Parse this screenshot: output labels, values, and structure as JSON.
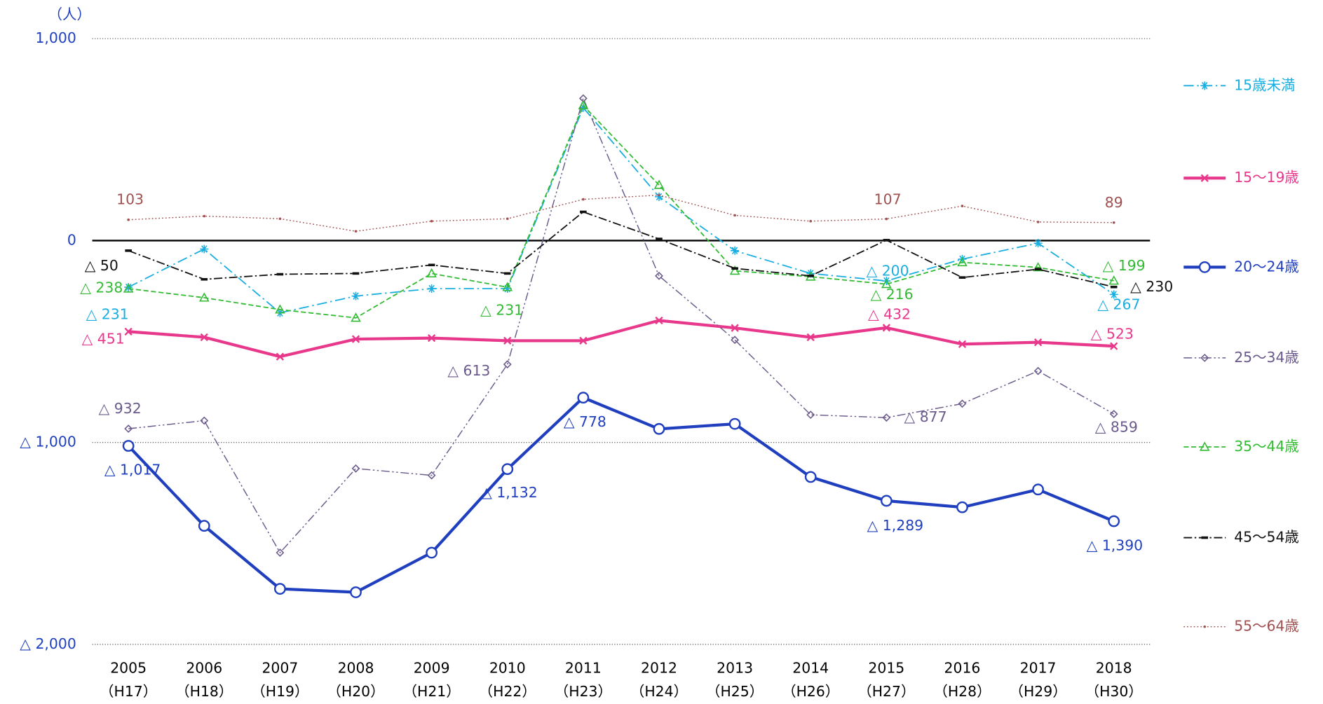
{
  "chart_data": {
    "type": "line",
    "y_unit": "（人）",
    "categories": [
      "2005",
      "2006",
      "2007",
      "2008",
      "2009",
      "2010",
      "2011",
      "2012",
      "2013",
      "2014",
      "2015",
      "2016",
      "2017",
      "2018"
    ],
    "category_eras": [
      "（H17）",
      "（H18）",
      "（H19）",
      "（H20）",
      "（H21）",
      "（H22）",
      "（H23）",
      "（H24）",
      "（H25）",
      "（H26）",
      "（H27）",
      "（H28）",
      "（H29）",
      "（H30）"
    ],
    "ylim": [
      -2000,
      1000
    ],
    "yticks": [
      {
        "value": 1000,
        "label": "1,000"
      },
      0,
      {
        "value": -1000,
        "label": "△ 1,000"
      },
      {
        "value": -2000,
        "label": "△ 2,000"
      }
    ],
    "grid": true,
    "legend": "right",
    "series": [
      {
        "name": "15歳未満",
        "color": "#1aaee0",
        "dash": "12 4 2 4",
        "width": 1.5,
        "marker": "asterisk",
        "values": [
          -231,
          -42,
          -358,
          -275,
          -238,
          -238,
          658,
          217,
          -50,
          -163,
          -200,
          -92,
          -13,
          -267
        ],
        "value_labels": [
          "△ 231",
          null,
          null,
          null,
          null,
          null,
          null,
          null,
          null,
          null,
          "△ 200",
          null,
          null,
          "△ 267"
        ]
      },
      {
        "name": "15～19歳",
        "color": "#e8388c",
        "dash": "",
        "width": 3.5,
        "marker": "x",
        "values": [
          -451,
          -479,
          -575,
          -488,
          -483,
          -496,
          -496,
          -396,
          -433,
          -479,
          -432,
          -513,
          -504,
          -523
        ],
        "value_labels": [
          "△ 451",
          null,
          null,
          null,
          null,
          null,
          null,
          null,
          null,
          null,
          "△ 432",
          null,
          null,
          "△ 523"
        ]
      },
      {
        "name": "20～24歳",
        "color": "#1f3fbf",
        "dash": "",
        "width": 3.5,
        "marker": "circle",
        "values": [
          -1017,
          -1413,
          -1725,
          -1742,
          -1546,
          -1132,
          -778,
          -933,
          -908,
          -1171,
          -1289,
          -1321,
          -1233,
          -1390
        ],
        "value_labels": [
          "△ 1,017",
          null,
          null,
          null,
          null,
          "△ 1,132",
          "△ 778",
          null,
          null,
          null,
          "△ 1,289",
          null,
          null,
          "△ 1,390"
        ]
      },
      {
        "name": "25～34歳",
        "color": "#6a5a8c",
        "dash": "10 3 2 3 2 3",
        "width": 1.2,
        "marker": "diamond",
        "values": [
          -932,
          -892,
          -1546,
          -1129,
          -1163,
          -613,
          704,
          -175,
          -492,
          -863,
          -877,
          -808,
          -646,
          -859
        ],
        "value_labels": [
          "△ 932",
          null,
          null,
          null,
          null,
          "△ 613",
          null,
          null,
          null,
          null,
          "△ 877",
          null,
          null,
          "△ 859"
        ]
      },
      {
        "name": "35～44歳",
        "color": "#33bb33",
        "dash": "6 3",
        "width": 1.5,
        "marker": "triangle",
        "values": [
          -238,
          -283,
          -342,
          -383,
          -163,
          -231,
          669,
          275,
          -150,
          -179,
          -216,
          -108,
          -133,
          -199
        ],
        "value_labels": [
          "△ 238",
          null,
          null,
          null,
          null,
          "△ 231",
          null,
          null,
          null,
          null,
          "△ 216",
          null,
          null,
          "△ 199"
        ]
      },
      {
        "name": "45～54歳",
        "color": "#111111",
        "dash": "10 3 2 3",
        "width": 1.5,
        "marker": "dash",
        "values": [
          -50,
          -192,
          -167,
          -163,
          -121,
          -163,
          142,
          8,
          -138,
          -175,
          2,
          -183,
          -142,
          -230
        ],
        "value_labels": [
          "△ 50",
          null,
          null,
          null,
          null,
          null,
          null,
          null,
          null,
          null,
          null,
          null,
          null,
          "△ 230"
        ]
      },
      {
        "name": "55～64歳",
        "color": "#a05050",
        "dash": "1.5 2.5",
        "width": 1.2,
        "marker": "dot",
        "values": [
          103,
          121,
          108,
          46,
          96,
          108,
          204,
          225,
          125,
          96,
          107,
          171,
          92,
          89
        ]
      }
    ]
  }
}
